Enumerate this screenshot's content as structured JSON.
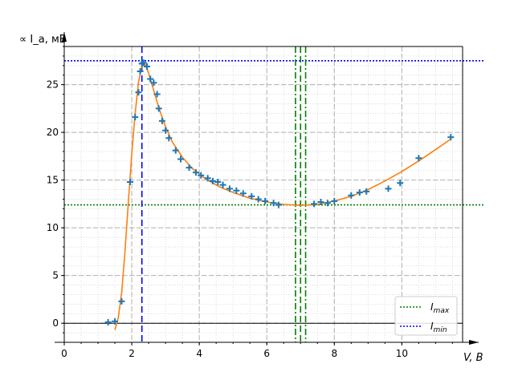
{
  "chart_data": {
    "type": "scatter",
    "title": "",
    "xlabel": "V, B",
    "ylabel": "∝ I_a, мВ",
    "xlim": [
      0,
      11.8
    ],
    "ylim": [
      -2,
      29
    ],
    "xticks": [
      0,
      2,
      4,
      6,
      8,
      10
    ],
    "yticks": [
      0,
      5,
      10,
      15,
      20,
      25
    ],
    "grid": "major dashed, minor dotted",
    "legend_position": "bottom-right",
    "legend": [
      {
        "label_main": "I",
        "label_sub": "max",
        "style": "dotted",
        "color": "#008000"
      },
      {
        "label_main": "I",
        "label_sub": "min",
        "style": "dotted",
        "color": "#0000ff"
      }
    ],
    "series": [
      {
        "type": "scatter",
        "marker": "+",
        "color": "#1f77b4",
        "points": [
          [
            1.3,
            0.1
          ],
          [
            1.5,
            0.2
          ],
          [
            1.7,
            2.3
          ],
          [
            1.95,
            14.8
          ],
          [
            2.1,
            21.6
          ],
          [
            2.2,
            24.2
          ],
          [
            2.25,
            26.4
          ],
          [
            2.3,
            27.2
          ],
          [
            2.35,
            27.3
          ],
          [
            2.45,
            26.9
          ],
          [
            2.55,
            25.6
          ],
          [
            2.65,
            25.2
          ],
          [
            2.75,
            24.0
          ],
          [
            2.8,
            22.5
          ],
          [
            2.9,
            21.2
          ],
          [
            3.0,
            20.2
          ],
          [
            3.1,
            19.4
          ],
          [
            3.3,
            18.1
          ],
          [
            3.45,
            17.2
          ],
          [
            3.7,
            16.3
          ],
          [
            3.9,
            15.8
          ],
          [
            4.05,
            15.5
          ],
          [
            4.25,
            15.2
          ],
          [
            4.4,
            14.9
          ],
          [
            4.55,
            14.8
          ],
          [
            4.7,
            14.5
          ],
          [
            4.9,
            14.1
          ],
          [
            5.1,
            13.9
          ],
          [
            5.3,
            13.6
          ],
          [
            5.55,
            13.3
          ],
          [
            5.75,
            13.0
          ],
          [
            5.95,
            12.8
          ],
          [
            6.2,
            12.6
          ],
          [
            6.35,
            12.4
          ],
          [
            7.4,
            12.5
          ],
          [
            7.6,
            12.7
          ],
          [
            7.8,
            12.6
          ],
          [
            8.0,
            12.8
          ],
          [
            8.5,
            13.4
          ],
          [
            8.75,
            13.7
          ],
          [
            8.95,
            13.8
          ],
          [
            9.6,
            14.1
          ],
          [
            9.95,
            14.7
          ],
          [
            10.5,
            17.3
          ],
          [
            11.45,
            19.5
          ]
        ]
      },
      {
        "type": "line",
        "color": "#ff7f0e",
        "points": [
          [
            1.5,
            -0.7
          ],
          [
            1.6,
            0.6
          ],
          [
            1.7,
            3.2
          ],
          [
            1.8,
            7.6
          ],
          [
            1.9,
            12.8
          ],
          [
            2.0,
            17.8
          ],
          [
            2.1,
            22.0
          ],
          [
            2.2,
            25.3
          ],
          [
            2.3,
            27.0
          ],
          [
            2.4,
            27.1
          ],
          [
            2.5,
            26.2
          ],
          [
            2.6,
            25.0
          ],
          [
            2.8,
            22.6
          ],
          [
            3.0,
            20.6
          ],
          [
            3.2,
            19.0
          ],
          [
            3.5,
            17.4
          ],
          [
            3.8,
            16.2
          ],
          [
            4.2,
            15.1
          ],
          [
            4.6,
            14.3
          ],
          [
            5.0,
            13.7
          ],
          [
            5.5,
            13.1
          ],
          [
            6.0,
            12.7
          ],
          [
            6.5,
            12.45
          ],
          [
            7.0,
            12.35
          ],
          [
            7.5,
            12.45
          ],
          [
            8.0,
            12.8
          ],
          [
            8.5,
            13.3
          ],
          [
            9.0,
            14.0
          ],
          [
            9.5,
            14.9
          ],
          [
            10.0,
            15.9
          ],
          [
            10.5,
            17.0
          ],
          [
            11.0,
            18.2
          ],
          [
            11.45,
            19.3
          ]
        ]
      }
    ],
    "reference_lines": [
      {
        "orientation": "horizontal",
        "value": 27.5,
        "style": "dotted",
        "color": "#0000ff"
      },
      {
        "orientation": "horizontal",
        "value": 12.4,
        "style": "dotted",
        "color": "#008000"
      },
      {
        "orientation": "horizontal",
        "value": 0,
        "style": "solid",
        "color": "#000000"
      },
      {
        "orientation": "vertical",
        "value": 2.3,
        "style": "dashed",
        "color": "#0000ff"
      },
      {
        "orientation": "vertical",
        "value": 6.85,
        "style": "dashdot",
        "color": "#008000"
      },
      {
        "orientation": "vertical",
        "value": 7.0,
        "style": "dashed",
        "color": "#008000"
      },
      {
        "orientation": "vertical",
        "value": 7.15,
        "style": "dashdot",
        "color": "#008000"
      }
    ]
  }
}
